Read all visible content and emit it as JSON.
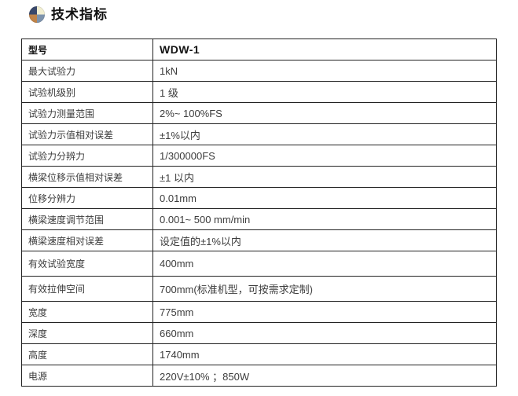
{
  "header": {
    "title": "技术指标",
    "icon_name": "pie-quadrant-icon"
  },
  "colors": {
    "icon_quadrant_top_left": "#39486B",
    "icon_quadrant_top_right": "#F2EFD2",
    "icon_quadrant_bottom_left": "#C08348",
    "icon_quadrant_bottom_right": "#7D93AC",
    "table_border": "#222222",
    "text": "#3C3C3C",
    "page_background": "#FFFFFF"
  },
  "table": {
    "rows": [
      {
        "label": "型号",
        "value": "WDW-1"
      },
      {
        "label": "最大试验力",
        "value": "1kN"
      },
      {
        "label": "试验机级别",
        "value": "1 级"
      },
      {
        "label": "试验力测量范围",
        "value": "2%~ 100%FS"
      },
      {
        "label": "试验力示值相对误差",
        "value": "±1%以内"
      },
      {
        "label": "试验力分辨力",
        "value": "1/300000FS"
      },
      {
        "label": "横梁位移示值相对误差",
        "value": "±1 以内"
      },
      {
        "label": "位移分辨力",
        "value": "0.01mm"
      },
      {
        "label": "横梁速度调节范围",
        "value": "0.001~ 500 mm/min"
      },
      {
        "label": "横梁速度相对误差",
        "value": "设定值的±1%以内"
      },
      {
        "label": "有效试验宽度",
        "value": "400mm"
      },
      {
        "label": "有效拉伸空间",
        "value": "700mm(标准机型，可按需求定制)"
      },
      {
        "label": "宽度",
        "value": "775mm"
      },
      {
        "label": "深度",
        "value": "660mm"
      },
      {
        "label": "高度",
        "value": "1740mm"
      },
      {
        "label": "电源",
        "value": "220V±10% ；850W"
      }
    ]
  },
  "footer": {
    "icon_name": "pie-quadrant-icon-partial"
  }
}
